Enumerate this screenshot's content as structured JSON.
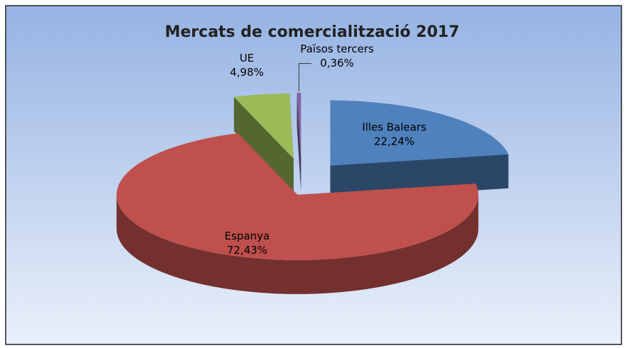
{
  "chart_data": {
    "type": "pie",
    "title": "Mercats de comercialització 2017",
    "categories": [
      "Illes Balears",
      "Espanya",
      "UE",
      "Països tercers"
    ],
    "values": [
      22.24,
      72.43,
      4.98,
      0.36
    ],
    "value_labels": [
      "22,24%",
      "72,43%",
      "4,98%",
      "0,36%"
    ],
    "colors": [
      "#4f81bd",
      "#c0504d",
      "#9bbb59",
      "#8064a2"
    ]
  }
}
